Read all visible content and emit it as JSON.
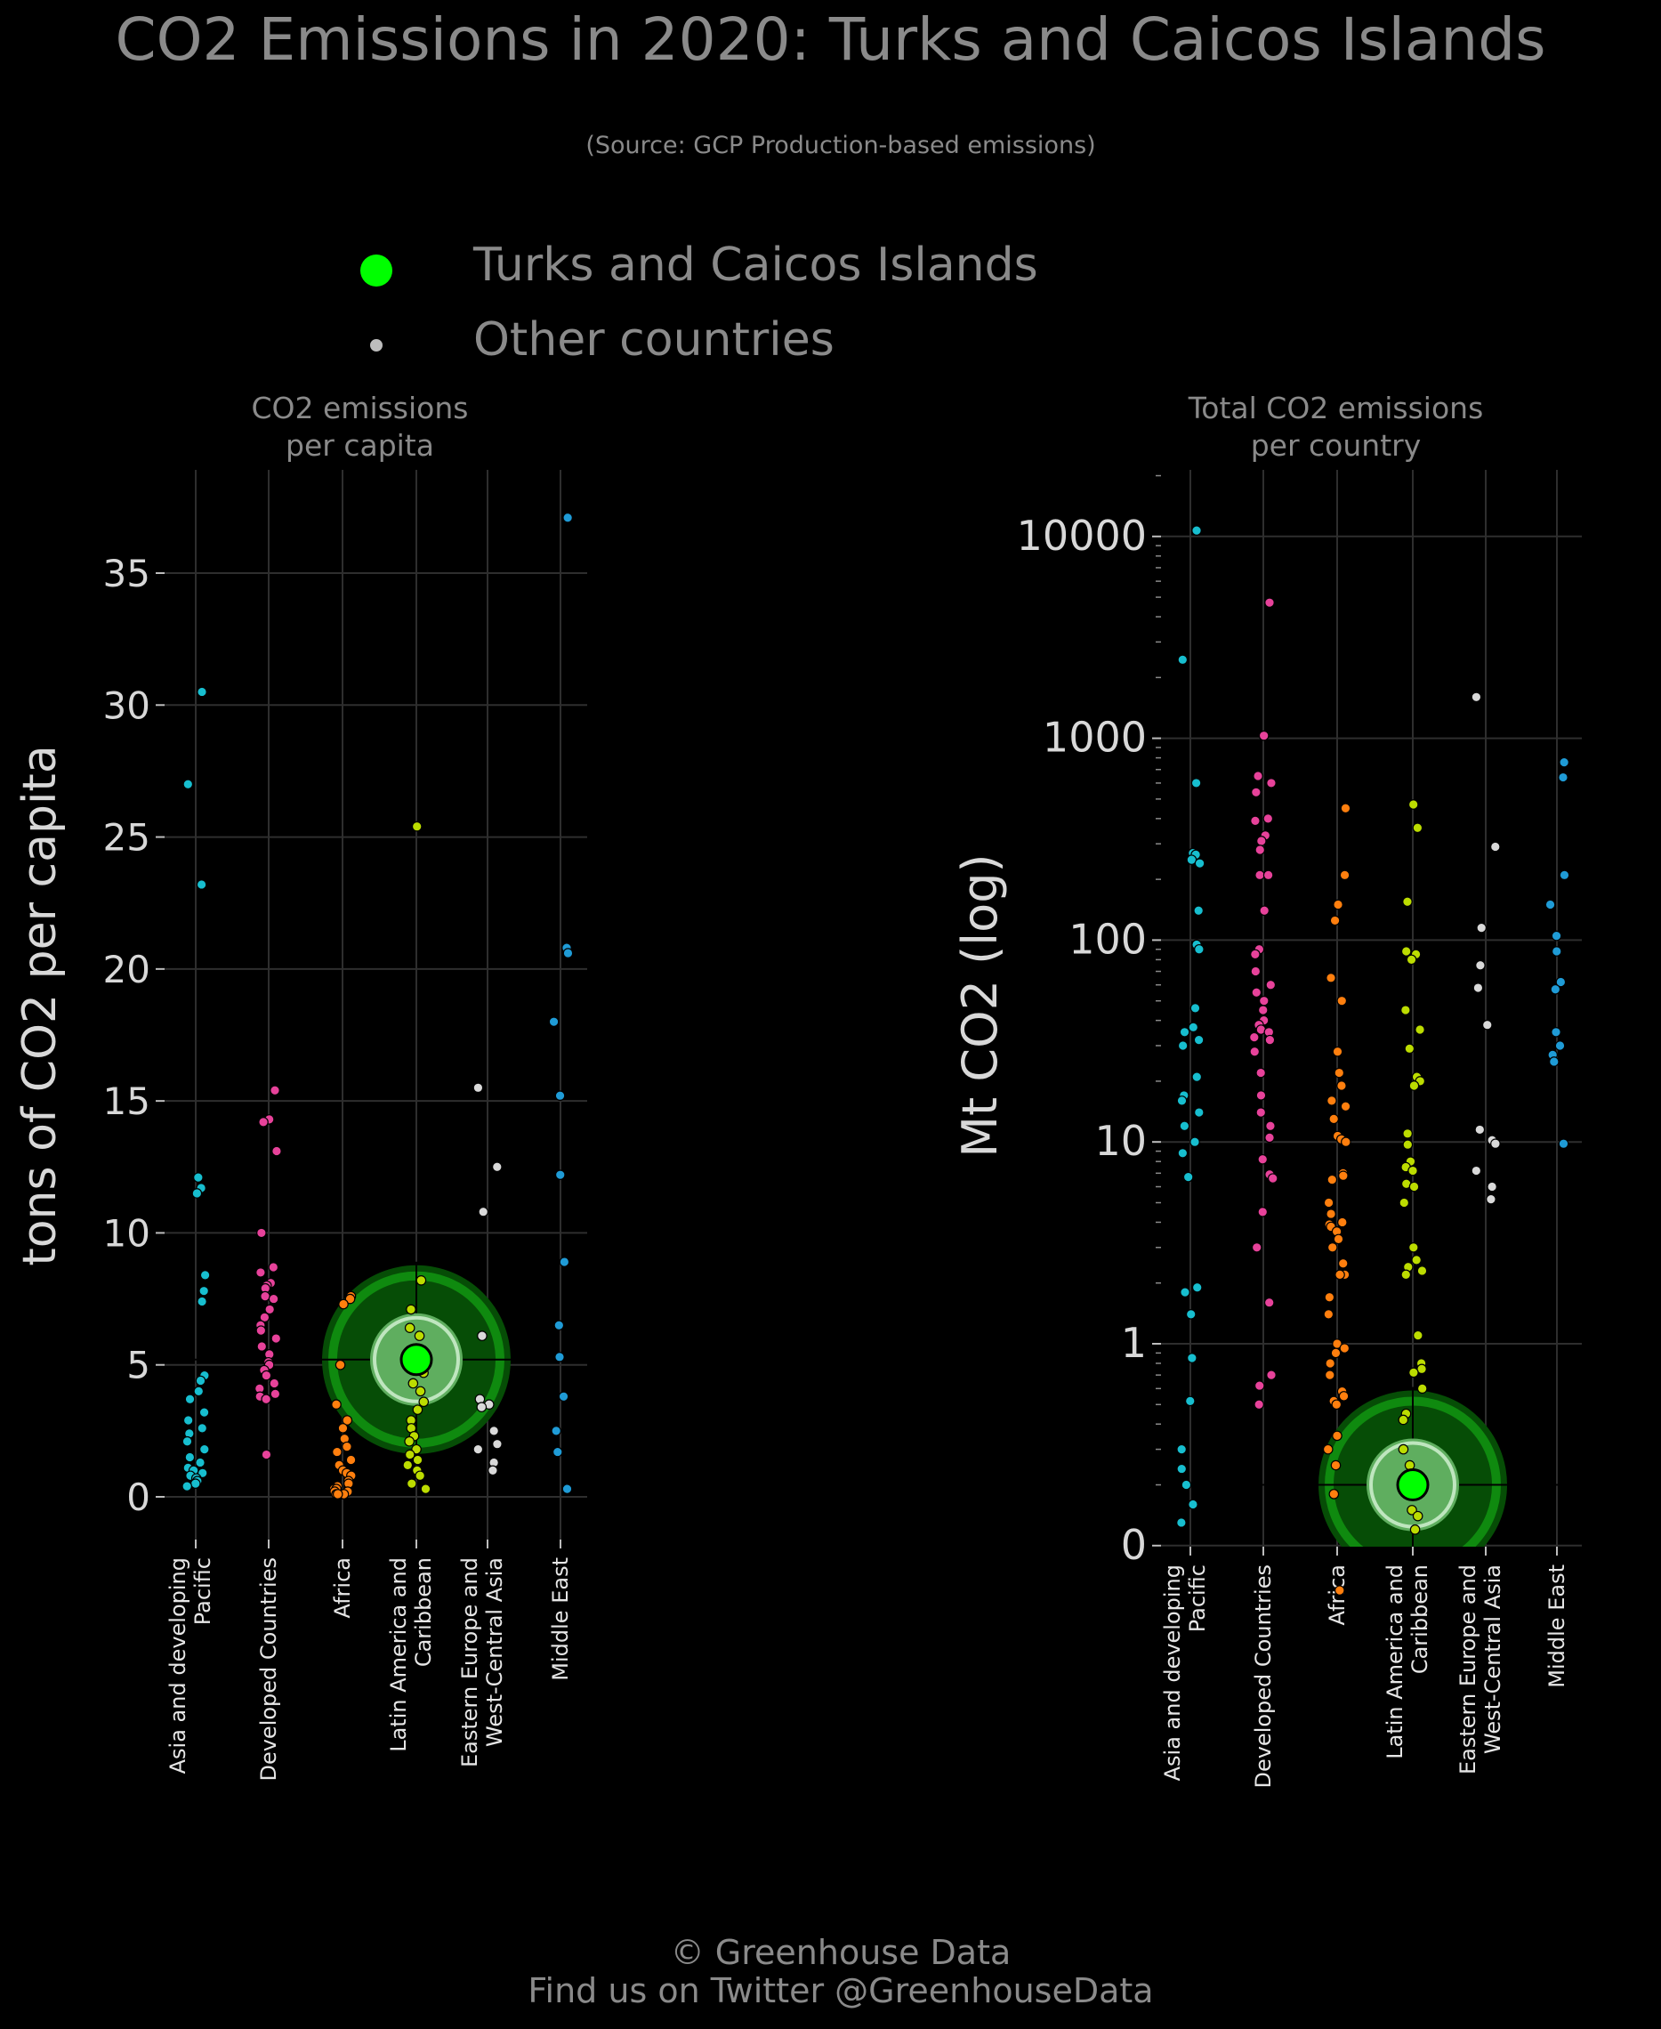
{
  "title": "CO2 Emissions in 2020: Turks and Caicos Islands",
  "subtitle": "(Source: GCP Production-based emissions)",
  "legend": {
    "highlight_label": "Turks and Caicos Islands",
    "other_label": "Other countries",
    "highlight_color": "#00ff00",
    "other_color": "#bdbdbd"
  },
  "footer": {
    "line1": "© Greenhouse Data",
    "line2": "Find us on Twitter @GreenhouseData"
  },
  "region_colors": {
    "Asia and developing Pacific": "#17becf",
    "Developed Countries": "#e7429a",
    "Africa": "#ff7f0e",
    "Latin America and Caribbean": "#bcdc00",
    "Eastern Europe and West-Central Asia": "#d9d9d9",
    "Middle East": "#1f9bd6"
  },
  "chart_data": [
    {
      "type": "scatter",
      "title": "CO2 emissions\nper capita",
      "ylabel": "tons of CO2 per capita",
      "ylim": [
        0,
        38.5
      ],
      "yticks": [
        "0",
        "5",
        "10",
        "15",
        "20",
        "25",
        "30",
        "35"
      ],
      "categories": [
        "Asia and developing\nPacific",
        "Developed Countries",
        "Africa",
        "Latin America and\nCaribbean",
        "Eastern Europe and\nWest-Central Asia",
        "Middle East"
      ],
      "highlight": {
        "category": "Latin America and\nCaribbean",
        "value": 5.2,
        "label": "Turks and Caicos Islands"
      },
      "series": [
        {
          "region": "Asia and developing Pacific",
          "values": [
            30.5,
            27.0,
            23.2,
            12.1,
            11.7,
            11.5,
            8.4,
            7.8,
            7.4,
            4.6,
            4.4,
            4.0,
            3.7,
            3.2,
            2.9,
            2.6,
            2.4,
            2.1,
            1.8,
            1.5,
            1.3,
            1.1,
            1.0,
            0.9,
            0.8,
            0.7,
            0.6,
            0.5,
            0.4
          ]
        },
        {
          "region": "Developed Countries",
          "values": [
            15.4,
            14.3,
            14.2,
            13.1,
            10.0,
            8.7,
            8.5,
            8.1,
            8.0,
            7.9,
            7.6,
            7.5,
            7.1,
            6.8,
            6.5,
            6.3,
            6.0,
            5.7,
            5.4,
            5.1,
            5.0,
            4.8,
            4.6,
            4.3,
            4.1,
            3.9,
            3.8,
            3.7,
            1.6
          ]
        },
        {
          "region": "Africa",
          "values": [
            7.6,
            7.5,
            7.3,
            5.0,
            3.5,
            2.9,
            2.6,
            2.2,
            1.9,
            1.7,
            1.4,
            1.2,
            1.0,
            0.9,
            0.8,
            0.6,
            0.5,
            0.4,
            0.3,
            0.3,
            0.2,
            0.2,
            0.1,
            0.1,
            0.1,
            0.1
          ]
        },
        {
          "region": "Latin America and Caribbean",
          "values": [
            25.4,
            8.2,
            7.1,
            6.4,
            6.1,
            5.6,
            5.1,
            4.7,
            4.3,
            4.0,
            3.6,
            3.3,
            2.9,
            2.6,
            2.3,
            2.1,
            1.8,
            1.6,
            1.4,
            1.2,
            1.0,
            0.8,
            0.5,
            0.3
          ]
        },
        {
          "region": "Eastern Europe and West-Central Asia",
          "values": [
            15.5,
            12.5,
            10.8,
            6.1,
            3.7,
            3.5,
            3.4,
            2.5,
            2.0,
            1.8,
            1.3,
            1.0
          ]
        },
        {
          "region": "Middle East",
          "values": [
            37.1,
            20.8,
            20.6,
            18.0,
            15.2,
            12.2,
            8.9,
            6.5,
            5.3,
            3.8,
            2.5,
            1.7,
            0.3
          ]
        }
      ]
    },
    {
      "type": "scatter",
      "title": "Total CO2 emissions\nper country",
      "ylabel": "Mt CO2 (log)",
      "yscale": "log",
      "yticks": [
        "0",
        "1",
        "10",
        "100",
        "1000",
        "10000"
      ],
      "categories": [
        "Asia and developing\nPacific",
        "Developed Countries",
        "Africa",
        "Latin America and\nCaribbean",
        "Eastern Europe and\nWest-Central Asia",
        "Middle East"
      ],
      "highlight": {
        "category": "Latin America and\nCaribbean",
        "value": 0.2,
        "label": "Turks and Caicos Islands"
      },
      "series": [
        {
          "region": "Asia and developing Pacific",
          "values": [
            10700,
            2450,
            600,
            270,
            265,
            250,
            240,
            140,
            95,
            90,
            46,
            37,
            35,
            32,
            30,
            21,
            17,
            16,
            14,
            12,
            10,
            8.8,
            6.7,
            1.9,
            1.8,
            1.4,
            0.85,
            0.52,
            0.3,
            0.24,
            0.2,
            0.16,
            0.13
          ]
        },
        {
          "region": "Developed Countries",
          "values": [
            4700,
            1030,
            650,
            600,
            540,
            400,
            390,
            330,
            310,
            280,
            210,
            210,
            140,
            90,
            85,
            70,
            60,
            55,
            50,
            45,
            40,
            38,
            36,
            35,
            33,
            32,
            28,
            22,
            17,
            14,
            12,
            10.5,
            8.2,
            6.9,
            6.6,
            4.5,
            3.0,
            1.6,
            0.7,
            0.62,
            0.5
          ]
        },
        {
          "region": "Africa",
          "values": [
            450,
            210,
            150,
            125,
            65,
            50,
            28,
            22,
            19,
            16,
            15,
            13,
            10.7,
            10.3,
            10.0,
            7.0,
            6.8,
            6.5,
            5.0,
            4.4,
            4.0,
            3.9,
            3.8,
            3.6,
            3.3,
            3.0,
            2.5,
            2.2,
            2.2,
            1.7,
            1.4,
            1.0,
            0.95,
            0.9,
            0.8,
            0.7,
            0.58,
            0.55,
            0.52,
            0.5,
            0.35,
            0.3,
            0.25,
            0.18,
            0.06
          ]
        },
        {
          "region": "Latin America and Caribbean",
          "values": [
            470,
            360,
            155,
            88,
            85,
            80,
            45,
            36,
            29,
            21,
            20,
            19,
            11,
            9.7,
            8.0,
            7.5,
            7.2,
            6.2,
            6.0,
            5.0,
            3.0,
            2.6,
            2.4,
            2.3,
            2.2,
            1.1,
            0.8,
            0.75,
            0.72,
            0.6,
            0.45,
            0.42,
            0.3,
            0.25,
            0.15,
            0.14,
            0.12
          ]
        },
        {
          "region": "Eastern Europe and West-Central Asia",
          "values": [
            1600,
            290,
            115,
            75,
            58,
            38,
            11.5,
            10.2,
            9.8,
            7.2,
            6.0,
            5.2
          ]
        },
        {
          "region": "Middle East",
          "values": [
            760,
            640,
            210,
            150,
            105,
            88,
            62,
            57,
            35,
            30,
            27,
            25,
            9.8
          ]
        }
      ]
    }
  ]
}
